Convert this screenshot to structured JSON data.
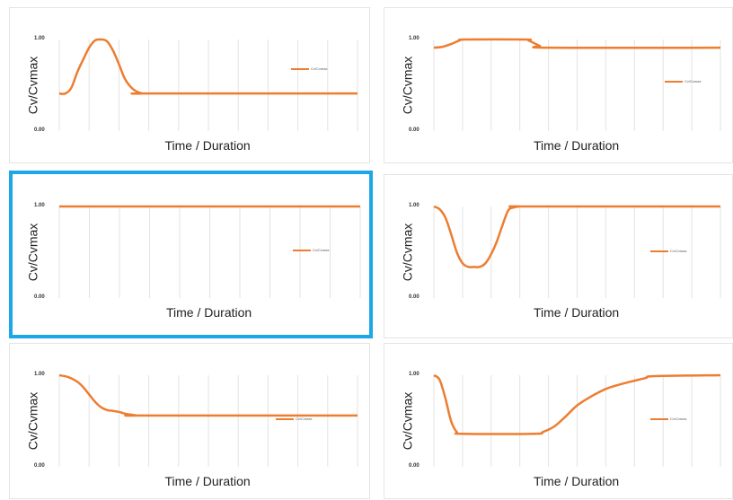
{
  "series_color": "#ed7d31",
  "selection_color": "#1ea7e8",
  "chart_data": [
    {
      "type": "line",
      "xlabel": "Time / Duration",
      "ylabel": "Cv/Cvmax",
      "yticks": [
        "1.00",
        "0.00"
      ],
      "ylim": [
        0,
        1
      ],
      "xlim": [
        0,
        1
      ],
      "legend": "top-right",
      "selected": false,
      "series": [
        {
          "name": "Cv/Cvmax",
          "x": [
            0,
            0.02,
            0.04,
            0.06,
            0.08,
            0.1,
            0.12,
            0.14,
            0.16,
            0.18,
            0.2,
            0.22,
            0.24,
            0.26,
            0.28,
            0.3,
            1
          ],
          "y": [
            0.41,
            0.41,
            0.47,
            0.64,
            0.78,
            0.91,
            0.99,
            1.0,
            0.98,
            0.88,
            0.73,
            0.57,
            0.48,
            0.43,
            0.41,
            0.41,
            0.41
          ]
        }
      ]
    },
    {
      "type": "line",
      "xlabel": "Time / Duration",
      "ylabel": "Cv/Cvmax",
      "yticks": [
        "1.00",
        "0.00"
      ],
      "ylim": [
        0,
        1
      ],
      "xlim": [
        0,
        1
      ],
      "legend": "right",
      "selected": false,
      "series": [
        {
          "name": "Cv/Cvmax",
          "x": [
            0,
            0.03,
            0.06,
            0.09,
            0.11,
            0.32,
            0.33,
            0.35,
            0.37,
            0.4,
            1
          ],
          "y": [
            0.91,
            0.92,
            0.95,
            0.99,
            1.0,
            1.0,
            0.99,
            0.96,
            0.93,
            0.91,
            0.91
          ]
        }
      ]
    },
    {
      "type": "line",
      "xlabel": "Time / Duration",
      "ylabel": "Cv/Cvmax",
      "yticks": [
        "1.00",
        "0.00"
      ],
      "ylim": [
        0,
        1
      ],
      "xlim": [
        0,
        1
      ],
      "legend": "right",
      "selected": true,
      "series": [
        {
          "name": "Cv/Cvmax",
          "x": [
            0,
            1
          ],
          "y": [
            1.0,
            1.0
          ]
        }
      ]
    },
    {
      "type": "line",
      "xlabel": "Time / Duration",
      "ylabel": "Cv/Cvmax",
      "yticks": [
        "1.00",
        "0.00"
      ],
      "ylim": [
        0,
        1
      ],
      "xlim": [
        0,
        1
      ],
      "legend": "right",
      "selected": false,
      "series": [
        {
          "name": "Cv/Cvmax",
          "x": [
            0,
            0.02,
            0.04,
            0.06,
            0.08,
            0.1,
            0.12,
            0.14,
            0.16,
            0.18,
            0.2,
            0.22,
            0.24,
            0.26,
            0.28,
            0.3,
            0.32,
            1
          ],
          "y": [
            1.0,
            0.97,
            0.88,
            0.7,
            0.5,
            0.38,
            0.34,
            0.34,
            0.34,
            0.38,
            0.48,
            0.62,
            0.8,
            0.96,
            0.99,
            1.0,
            1.0,
            1.0
          ]
        }
      ]
    },
    {
      "type": "line",
      "xlabel": "Time / Duration",
      "ylabel": "Cv/Cvmax",
      "yticks": [
        "1.00",
        "0.00"
      ],
      "ylim": [
        0,
        1
      ],
      "xlim": [
        0,
        1
      ],
      "legend": "right",
      "selected": false,
      "series": [
        {
          "name": "Cv/Cvmax",
          "x": [
            0,
            0.03,
            0.06,
            0.08,
            0.1,
            0.12,
            0.14,
            0.16,
            0.18,
            0.2,
            0.22,
            0.24,
            0.26,
            0.28,
            1
          ],
          "y": [
            1.0,
            0.98,
            0.93,
            0.87,
            0.79,
            0.71,
            0.65,
            0.62,
            0.61,
            0.6,
            0.58,
            0.57,
            0.56,
            0.56,
            0.56
          ]
        }
      ]
    },
    {
      "type": "line",
      "xlabel": "Time / Duration",
      "ylabel": "Cv/Cvmax",
      "yticks": [
        "1.00",
        "0.00"
      ],
      "ylim": [
        0,
        1
      ],
      "xlim": [
        0,
        1
      ],
      "legend": "right",
      "selected": false,
      "series": [
        {
          "name": "Cv/Cvmax",
          "x": [
            0,
            0.02,
            0.04,
            0.06,
            0.08,
            0.1,
            0.35,
            0.38,
            0.42,
            0.46,
            0.5,
            0.55,
            0.6,
            0.65,
            0.7,
            0.74,
            0.77,
            1
          ],
          "y": [
            1.0,
            0.95,
            0.75,
            0.5,
            0.38,
            0.36,
            0.36,
            0.38,
            0.44,
            0.55,
            0.67,
            0.77,
            0.85,
            0.9,
            0.94,
            0.97,
            0.99,
            1.0
          ]
        }
      ]
    }
  ]
}
